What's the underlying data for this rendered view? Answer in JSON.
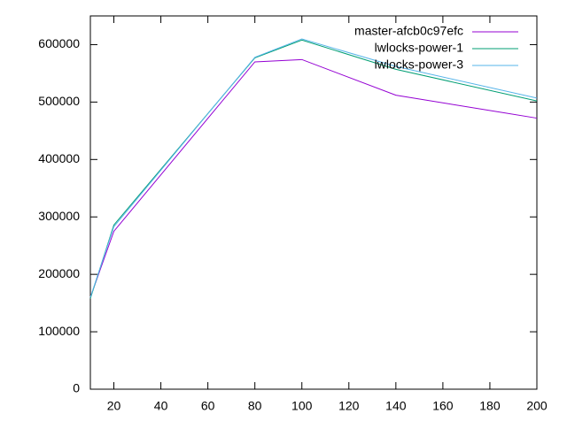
{
  "chart_data": {
    "type": "line",
    "x": [
      10,
      20,
      80,
      100,
      140,
      200
    ],
    "series": [
      {
        "name": "master-afcb0c97efc",
        "color": "#9400d3",
        "values": [
          160000,
          275000,
          570000,
          574000,
          512000,
          472000
        ]
      },
      {
        "name": "lwlocks-power-1",
        "color": "#009e73",
        "values": [
          158000,
          286000,
          577000,
          608000,
          557000,
          502000
        ]
      },
      {
        "name": "lwlocks-power-3",
        "color": "#56b4e9",
        "values": [
          160000,
          283000,
          578000,
          610000,
          562000,
          507000
        ]
      }
    ],
    "xlim": [
      10,
      200
    ],
    "xticks": [
      20,
      40,
      60,
      80,
      100,
      120,
      140,
      160,
      180,
      200
    ],
    "ylim": [
      0,
      650000
    ],
    "yticks": [
      0,
      100000,
      200000,
      300000,
      400000,
      500000,
      600000
    ],
    "grid": false,
    "legend": "top-right"
  }
}
